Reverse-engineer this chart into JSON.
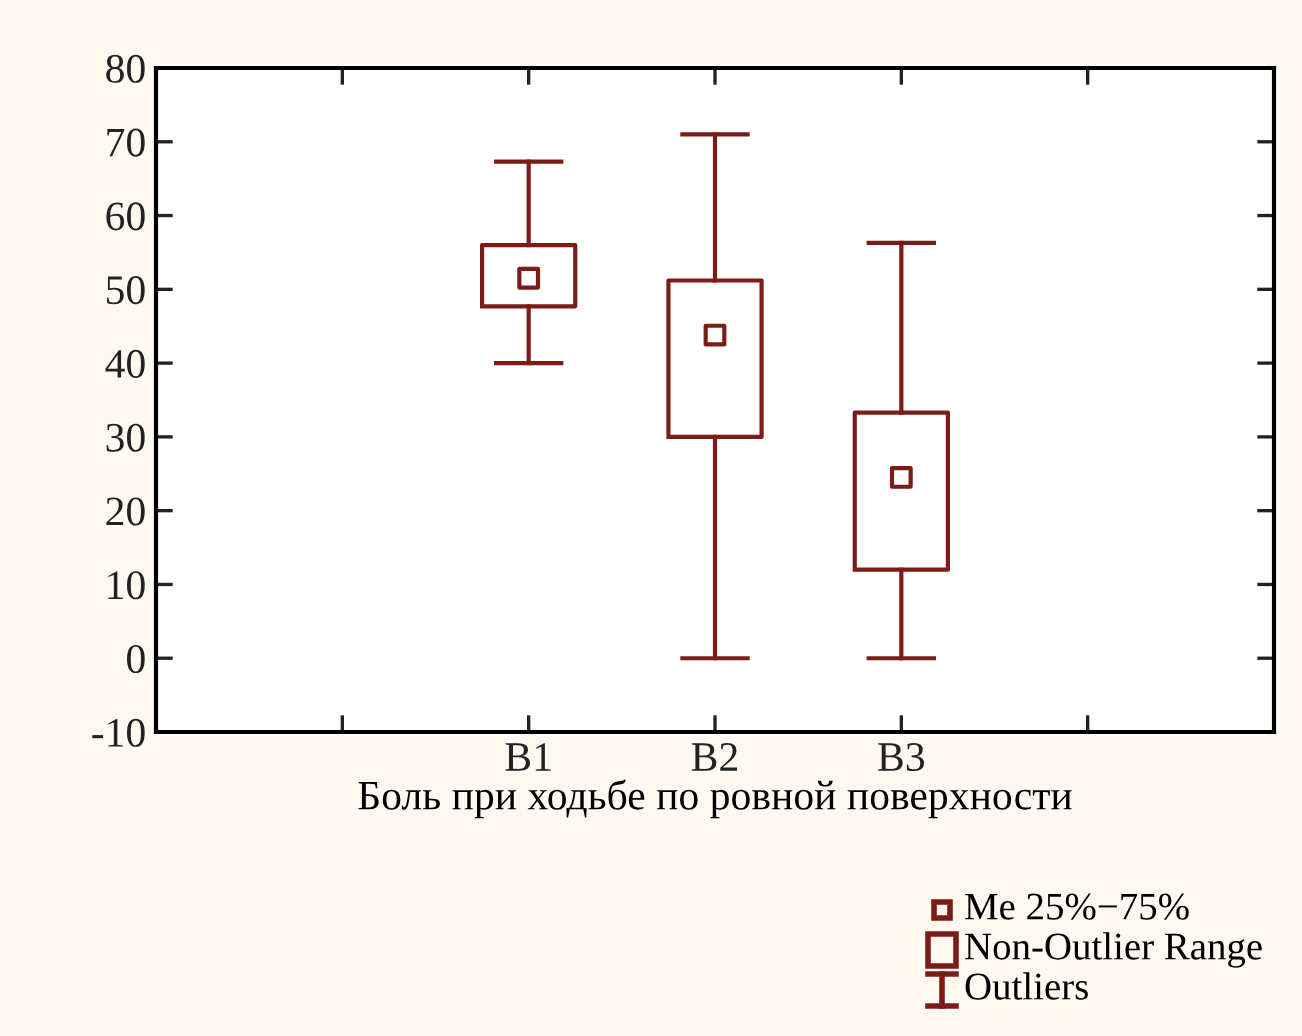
{
  "chart_data": {
    "type": "box",
    "xlabel": "Боль при ходьбе по ровной поверхности",
    "categories": [
      null,
      "B1",
      "B2",
      "B3",
      null
    ],
    "series": [
      {
        "color": "#7b1c16",
        "boxes": [
          null,
          {
            "low": 40,
            "q1": 47.7,
            "median": 51.5,
            "q3": 56,
            "high": 67.3
          },
          {
            "low": 0,
            "q1": 30,
            "median": 43.8,
            "q3": 51.2,
            "high": 71
          },
          {
            "low": 0,
            "q1": 12,
            "median": 24.5,
            "q3": 33.3,
            "high": 56.3
          },
          null
        ]
      }
    ],
    "ylim": [
      -10,
      80
    ],
    "yticks": [
      -10,
      0,
      10,
      20,
      30,
      40,
      50,
      60,
      70,
      80
    ],
    "grid": false,
    "marker": "square",
    "annotations": [
      "Me 25%−75%",
      "Non-Outlier Range",
      "Outliers"
    ]
  }
}
